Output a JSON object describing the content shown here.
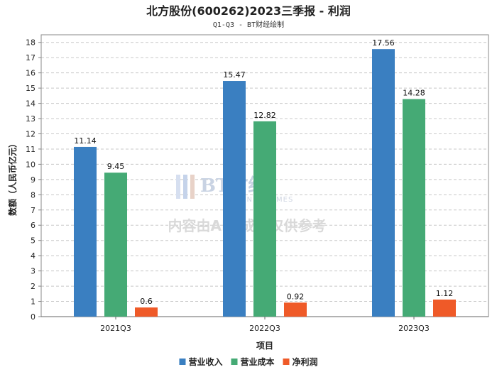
{
  "chart_data": {
    "type": "bar",
    "title": "北方股份(600262)2023三季报 - 利润",
    "subtitle": "Q1-Q3 - BT财经绘制",
    "xlabel": "项目",
    "ylabel": "数额（人民币亿元）",
    "categories": [
      "2021Q3",
      "2022Q3",
      "2023Q3"
    ],
    "ylim": [
      0,
      18.5
    ],
    "yticks": [
      0,
      1,
      2,
      3,
      4,
      5,
      6,
      7,
      8,
      9,
      10,
      11,
      12,
      13,
      14,
      15,
      16,
      17,
      18
    ],
    "grid": true,
    "legend_position": "bottom",
    "series": [
      {
        "name": "营业收入",
        "color": "#3a7fc1",
        "values": [
          11.14,
          15.47,
          17.56
        ],
        "labels": [
          "11.14",
          "15.47",
          "17.56"
        ]
      },
      {
        "name": "营业成本",
        "color": "#45aa75",
        "values": [
          9.45,
          12.82,
          14.28
        ],
        "labels": [
          "9.45",
          "12.82",
          "14.28"
        ]
      },
      {
        "name": "净利润",
        "color": "#ef5a28",
        "values": [
          0.6,
          0.92,
          1.12
        ],
        "labels": [
          "0.6",
          "0.92",
          "1.12"
        ]
      }
    ]
  },
  "watermark": {
    "brand": "BT财经",
    "brand_sub": "BUSINESSTIMES",
    "note": "内容由AI生成，仅供参考"
  }
}
